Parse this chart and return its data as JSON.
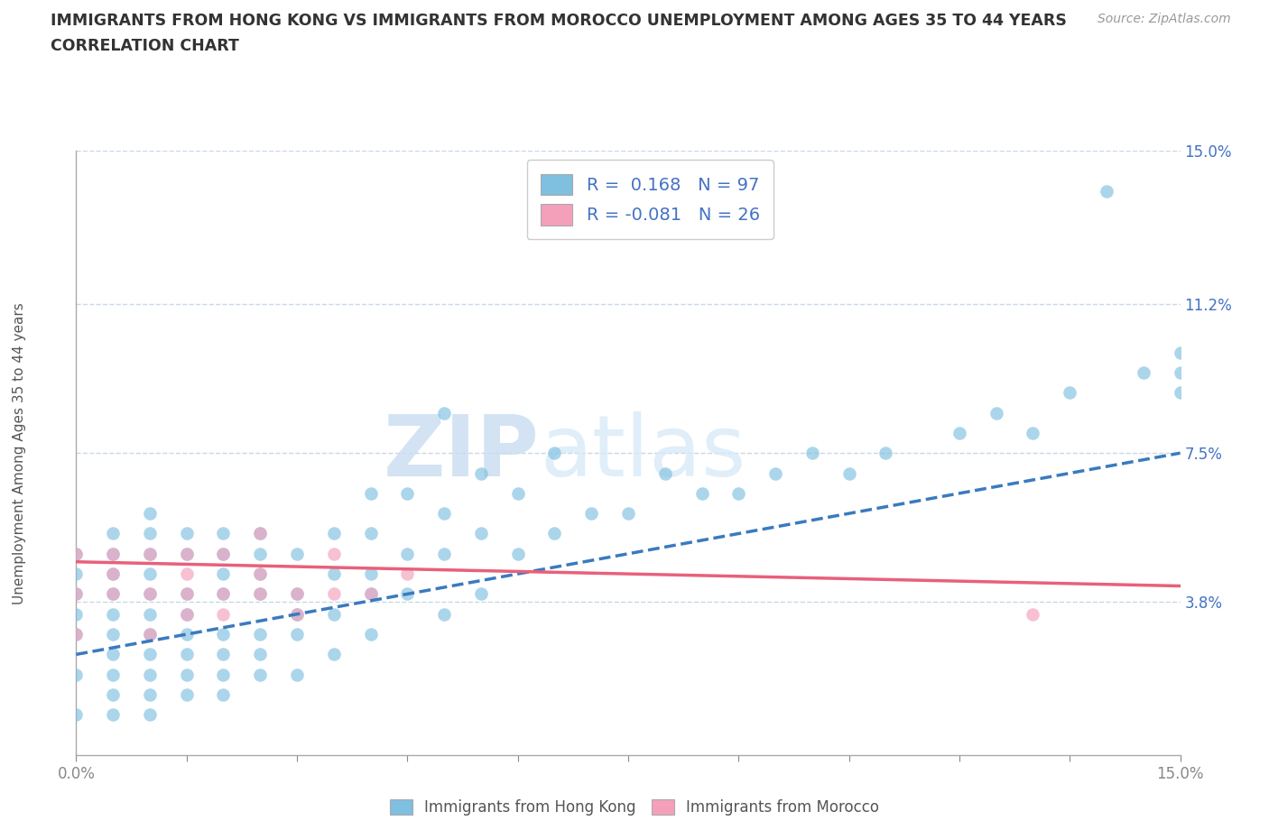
{
  "title_line1": "IMMIGRANTS FROM HONG KONG VS IMMIGRANTS FROM MOROCCO UNEMPLOYMENT AMONG AGES 35 TO 44 YEARS",
  "title_line2": "CORRELATION CHART",
  "source": "Source: ZipAtlas.com",
  "ylabel": "Unemployment Among Ages 35 to 44 years",
  "xlim": [
    0.0,
    0.15
  ],
  "ylim": [
    0.0,
    0.15
  ],
  "ytick_values": [
    0.0,
    0.038,
    0.075,
    0.112,
    0.15
  ],
  "ytick_labels": [
    "",
    "3.8%",
    "7.5%",
    "11.2%",
    "15.0%"
  ],
  "xtick_values": [
    0.0,
    0.015,
    0.03,
    0.045,
    0.06,
    0.075,
    0.09,
    0.105,
    0.12,
    0.135,
    0.15
  ],
  "hk_color": "#7fbfdf",
  "morocco_color": "#f4a0bb",
  "hk_line_color": "#3a7abf",
  "morocco_line_color": "#e8607a",
  "R_hk": 0.168,
  "N_hk": 97,
  "R_morocco": -0.081,
  "N_morocco": 26,
  "watermark_zip": "ZIP",
  "watermark_atlas": "atlas",
  "background_color": "#ffffff",
  "grid_color": "#c8d8e8",
  "hk_scatter_x": [
    0.0,
    0.0,
    0.0,
    0.0,
    0.0,
    0.0,
    0.0,
    0.005,
    0.005,
    0.005,
    0.005,
    0.005,
    0.005,
    0.005,
    0.005,
    0.005,
    0.005,
    0.01,
    0.01,
    0.01,
    0.01,
    0.01,
    0.01,
    0.01,
    0.01,
    0.01,
    0.01,
    0.01,
    0.015,
    0.015,
    0.015,
    0.015,
    0.015,
    0.015,
    0.015,
    0.015,
    0.02,
    0.02,
    0.02,
    0.02,
    0.02,
    0.02,
    0.02,
    0.02,
    0.025,
    0.025,
    0.025,
    0.025,
    0.025,
    0.025,
    0.025,
    0.03,
    0.03,
    0.03,
    0.03,
    0.03,
    0.035,
    0.035,
    0.035,
    0.035,
    0.04,
    0.04,
    0.04,
    0.04,
    0.04,
    0.045,
    0.045,
    0.045,
    0.05,
    0.05,
    0.05,
    0.05,
    0.055,
    0.055,
    0.055,
    0.06,
    0.06,
    0.065,
    0.065,
    0.07,
    0.075,
    0.08,
    0.085,
    0.09,
    0.095,
    0.1,
    0.105,
    0.11,
    0.12,
    0.125,
    0.13,
    0.135,
    0.14,
    0.145,
    0.15,
    0.15,
    0.15
  ],
  "hk_scatter_y": [
    0.01,
    0.02,
    0.03,
    0.035,
    0.04,
    0.045,
    0.05,
    0.01,
    0.015,
    0.02,
    0.025,
    0.03,
    0.035,
    0.04,
    0.045,
    0.05,
    0.055,
    0.01,
    0.015,
    0.02,
    0.025,
    0.03,
    0.035,
    0.04,
    0.045,
    0.05,
    0.055,
    0.06,
    0.015,
    0.02,
    0.025,
    0.03,
    0.035,
    0.04,
    0.05,
    0.055,
    0.015,
    0.02,
    0.025,
    0.03,
    0.04,
    0.045,
    0.05,
    0.055,
    0.02,
    0.025,
    0.03,
    0.04,
    0.045,
    0.05,
    0.055,
    0.02,
    0.03,
    0.035,
    0.04,
    0.05,
    0.025,
    0.035,
    0.045,
    0.055,
    0.03,
    0.04,
    0.045,
    0.055,
    0.065,
    0.04,
    0.05,
    0.065,
    0.035,
    0.05,
    0.06,
    0.085,
    0.04,
    0.055,
    0.07,
    0.05,
    0.065,
    0.055,
    0.075,
    0.06,
    0.06,
    0.07,
    0.065,
    0.065,
    0.07,
    0.075,
    0.07,
    0.075,
    0.08,
    0.085,
    0.08,
    0.09,
    0.14,
    0.095,
    0.09,
    0.095,
    0.1
  ],
  "morocco_scatter_x": [
    0.0,
    0.0,
    0.0,
    0.005,
    0.005,
    0.005,
    0.01,
    0.01,
    0.01,
    0.015,
    0.015,
    0.015,
    0.015,
    0.02,
    0.02,
    0.02,
    0.025,
    0.025,
    0.025,
    0.03,
    0.03,
    0.035,
    0.035,
    0.04,
    0.045,
    0.13
  ],
  "morocco_scatter_y": [
    0.03,
    0.04,
    0.05,
    0.04,
    0.045,
    0.05,
    0.03,
    0.04,
    0.05,
    0.035,
    0.04,
    0.045,
    0.05,
    0.035,
    0.04,
    0.05,
    0.04,
    0.045,
    0.055,
    0.035,
    0.04,
    0.04,
    0.05,
    0.04,
    0.045,
    0.035
  ],
  "hk_line_y_start": 0.025,
  "hk_line_y_end": 0.075,
  "morocco_line_y_start": 0.048,
  "morocco_line_y_end": 0.042,
  "legend_labels": [
    "Immigrants from Hong Kong",
    "Immigrants from Morocco"
  ],
  "bottom_xtick_0": "0.0%",
  "bottom_xtick_1": "15.0%"
}
